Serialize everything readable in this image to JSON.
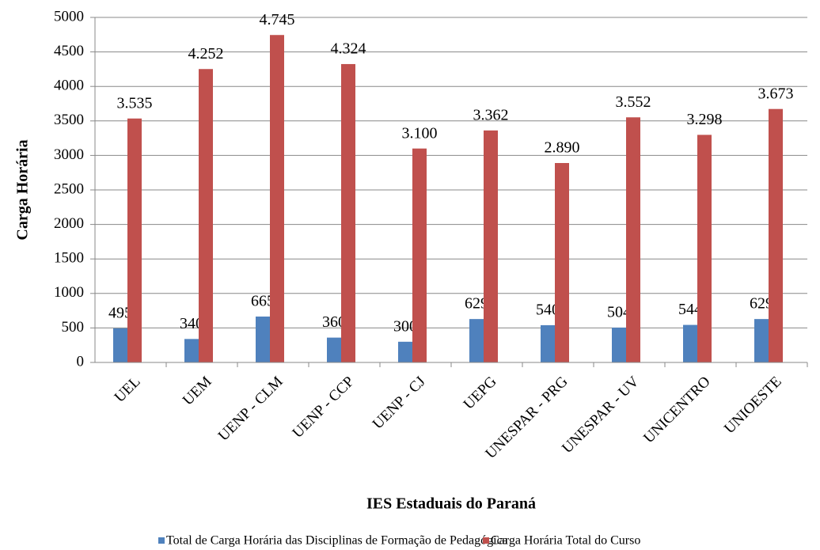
{
  "chart_data": {
    "type": "bar",
    "x_label": "IES Estaduais do Paraná",
    "y_label": "Carga Horária",
    "categories": [
      "UEL",
      "UEM",
      "UENP - CLM",
      "UENP - CCP",
      "UENP - CJ",
      "UEPG",
      "UNESPAR - PRG",
      "UNESPAR - UV",
      "UNICENTRO",
      "UNIOESTE"
    ],
    "series": [
      {
        "name": "Total de Carga Horária das Disciplinas de Formação de Pedagógica",
        "color": "#4f81bd",
        "values": [
          495,
          340,
          665,
          360,
          300,
          629,
          540,
          504,
          544,
          629
        ]
      },
      {
        "name": "Carga Horária Total do Curso",
        "color": "#c0504d",
        "values": [
          3535,
          4252,
          4745,
          4324,
          3100,
          3362,
          2890,
          3552,
          3298,
          3673
        ],
        "value_labels": [
          "3.535",
          "4.252",
          "4.745",
          "4.324",
          "3.100",
          "3.362",
          "2.890",
          "3.552",
          "3.298",
          "3.673"
        ]
      }
    ],
    "ylim": [
      0,
      5000
    ],
    "yticks": [
      0,
      500,
      1000,
      1500,
      2000,
      2500,
      3000,
      3500,
      4000,
      4500,
      5000
    ],
    "grid": true,
    "legend": "bottom"
  }
}
